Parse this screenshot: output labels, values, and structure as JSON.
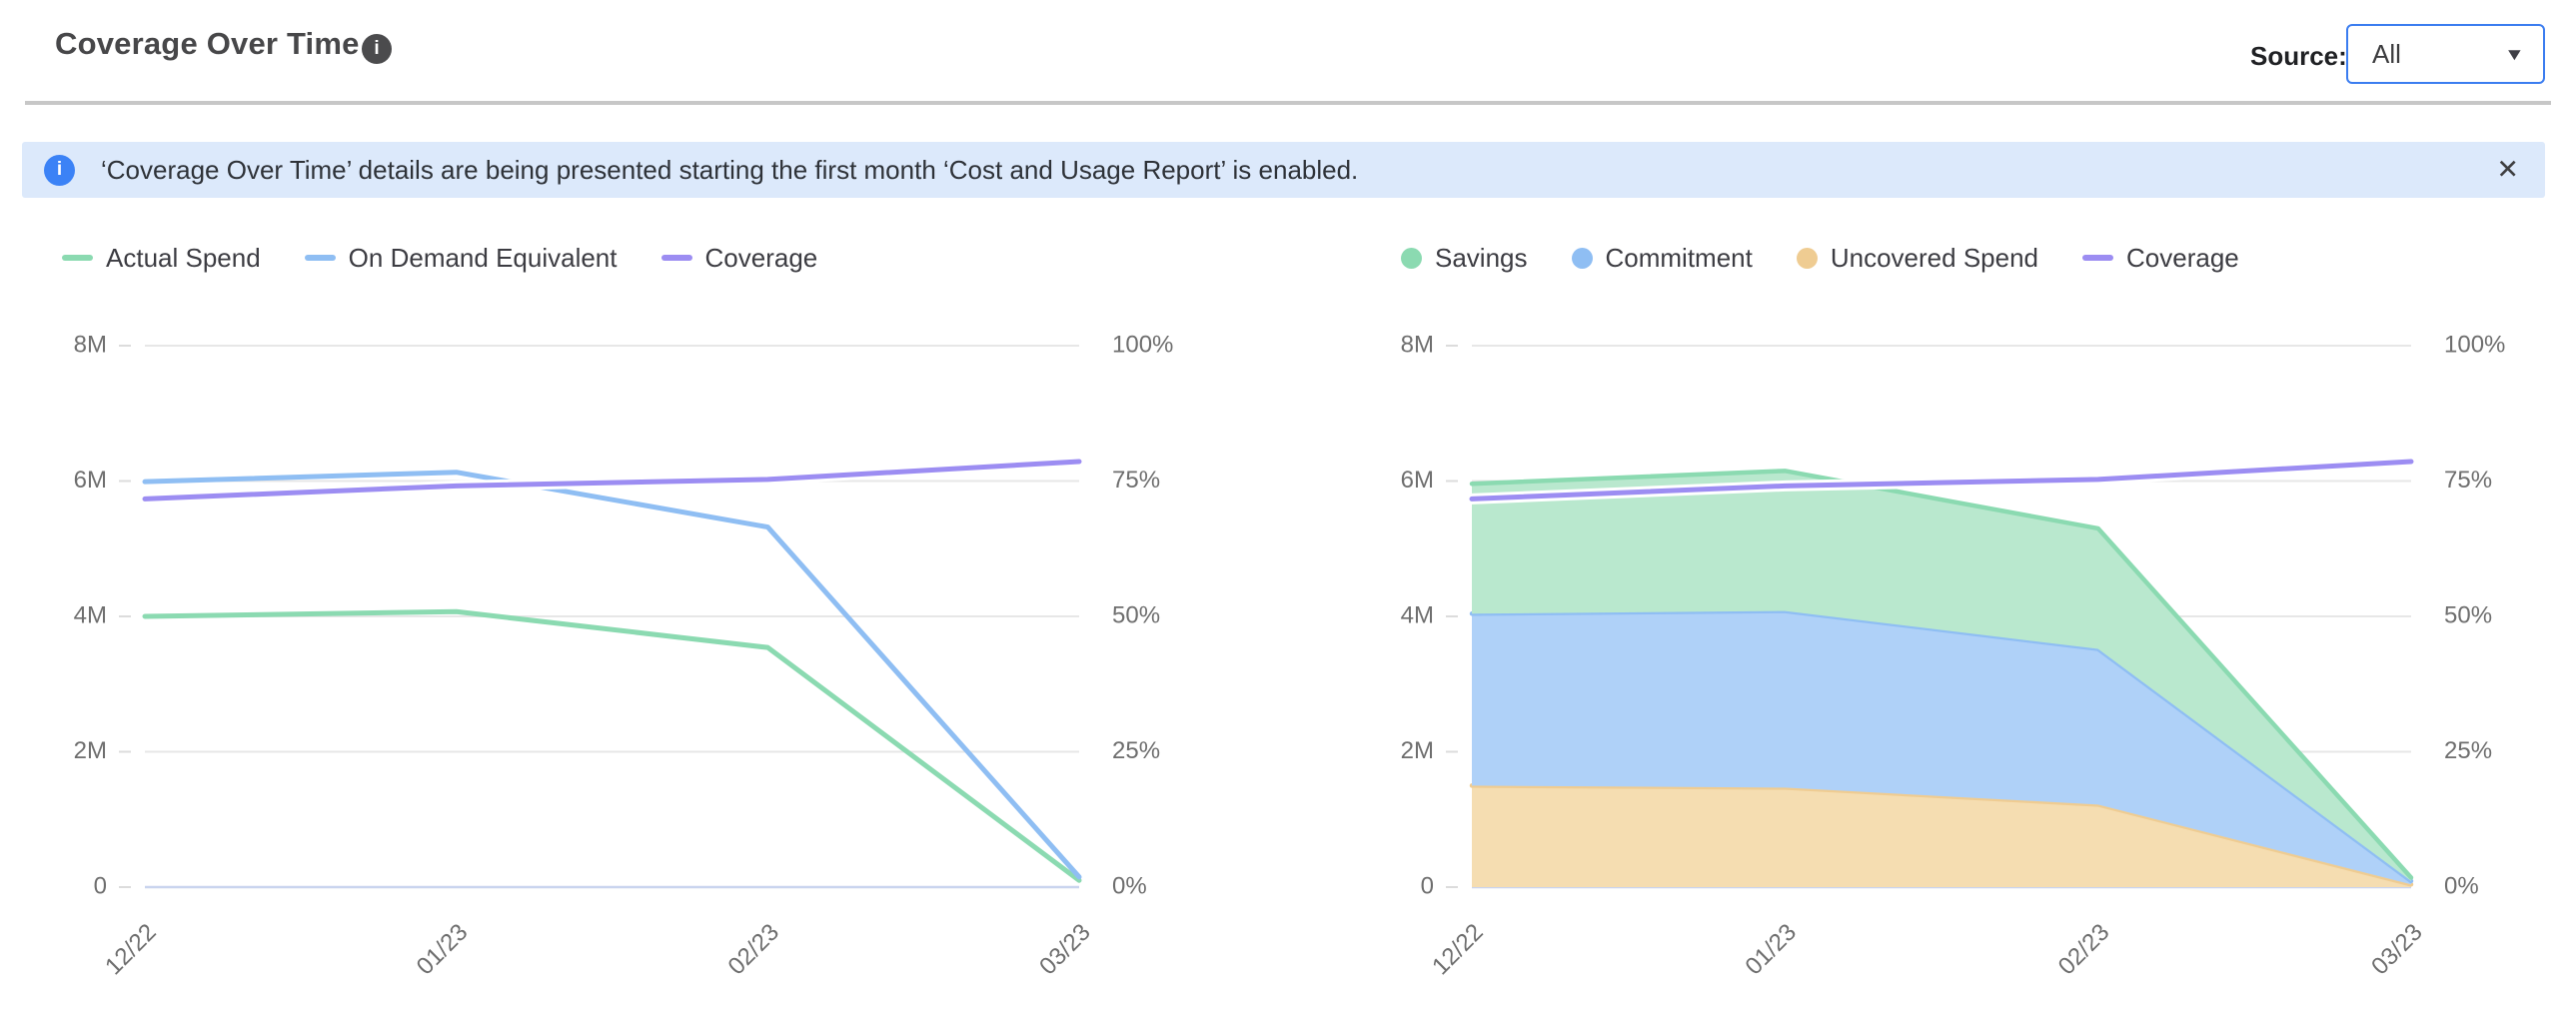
{
  "header": {
    "title": "Coverage Over Time",
    "source_label": "Source:",
    "source_value": "All"
  },
  "banner": {
    "text": "‘Coverage Over Time’ details are being presented starting the first month ‘Cost and Usage Report’ is enabled."
  },
  "icons": {
    "info": "i",
    "close": "✕",
    "caret_down": "▼"
  },
  "colors": {
    "accent_blue_border": "#3b7df0",
    "banner_bg": "#dce9fb",
    "banner_icon": "#3b82f6",
    "grid": "#e7e7e7",
    "baseline": "#c9d4ee",
    "axis_text": "#6e6e6e"
  },
  "chart_data": [
    {
      "type": "line",
      "title": "",
      "categories": [
        "12/22",
        "01/23",
        "02/23",
        "03/23"
      ],
      "left_axis": {
        "ticks": [
          "0",
          "2M",
          "4M",
          "6M",
          "8M"
        ],
        "max_m": 8
      },
      "right_axis": {
        "ticks": [
          "0%",
          "25%",
          "50%",
          "75%",
          "100%"
        ],
        "max_pct": 100
      },
      "grid": true,
      "legend_position": "top-left",
      "series": [
        {
          "name": "Actual Spend",
          "kind": "line",
          "axis": "left",
          "swatch": "line",
          "color": "#8bdab1",
          "values_m": [
            4.0,
            4.07,
            3.54,
            0.1
          ]
        },
        {
          "name": "On Demand Equivalent",
          "kind": "line",
          "axis": "left",
          "swatch": "line",
          "color": "#8fbef3",
          "values_m": [
            5.99,
            6.13,
            5.32,
            0.15
          ]
        },
        {
          "name": "Coverage",
          "kind": "line",
          "axis": "right",
          "swatch": "line",
          "color": "#9c8df2",
          "halo": "#ffffff",
          "values_pct": [
            71.7,
            74.1,
            75.3,
            78.6
          ]
        }
      ]
    },
    {
      "type": "area",
      "title": "",
      "categories": [
        "12/22",
        "01/23",
        "02/23",
        "03/23"
      ],
      "left_axis": {
        "ticks": [
          "0",
          "2M",
          "4M",
          "6M",
          "8M"
        ],
        "max_m": 8
      },
      "right_axis": {
        "ticks": [
          "0%",
          "25%",
          "50%",
          "75%",
          "100%"
        ],
        "max_pct": 100
      },
      "grid": true,
      "legend_position": "top-left",
      "series": [
        {
          "name": "Savings",
          "kind": "area",
          "axis": "left",
          "swatch": "circle",
          "color": "#8bdab1",
          "fill": "#b9e8ce",
          "stack_level": 2,
          "values_m": [
            1.92,
            2.07,
            1.78,
            0.05
          ]
        },
        {
          "name": "Commitment",
          "kind": "area",
          "axis": "left",
          "swatch": "circle",
          "color": "#8fbef3",
          "fill": "#afd1f8",
          "stack_level": 1,
          "values_m": [
            2.54,
            2.61,
            2.3,
            0.05
          ]
        },
        {
          "name": "Uncovered Spend",
          "kind": "area",
          "axis": "left",
          "swatch": "circle",
          "color": "#efcc92",
          "fill": "#f5ddb1",
          "stack_level": 0,
          "values_m": [
            1.5,
            1.47,
            1.22,
            0.04
          ]
        },
        {
          "name": "Coverage",
          "kind": "line",
          "axis": "right",
          "swatch": "line",
          "color": "#9c8df2",
          "halo": "#ffffff",
          "values_pct": [
            71.7,
            74.1,
            75.3,
            78.6
          ]
        }
      ]
    }
  ]
}
